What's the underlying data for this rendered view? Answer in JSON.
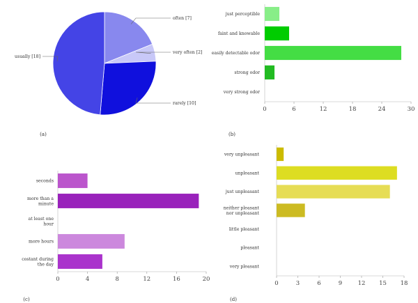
{
  "chart_data": [
    {
      "type": "pie",
      "panel_label": "(a)",
      "categories": [
        "often [7]",
        "very often [2]",
        "rarely [10]",
        "usually [18]"
      ],
      "values": [
        7,
        2,
        10,
        18
      ],
      "colors": [
        "#8888ee",
        "#c8c8f8",
        "#1010dd",
        "#4444e6"
      ]
    },
    {
      "type": "bar",
      "orientation": "horizontal",
      "panel_label": "(b)",
      "categories": [
        "just perceptible",
        "faint and knowable",
        "easily detectable odor",
        "strong odor",
        "very strong odor"
      ],
      "values": [
        3,
        5,
        28,
        2,
        0
      ],
      "xlim": [
        0,
        30
      ],
      "xticks": [
        "0",
        "6",
        "12",
        "18",
        "24",
        "30"
      ],
      "colors": [
        "#88ee88",
        "#00cc00",
        "#44dd44",
        "#22bb22",
        "#22bb22"
      ]
    },
    {
      "type": "bar",
      "orientation": "horizontal",
      "panel_label": "(c)",
      "categories": [
        "seconds",
        "more than a minute",
        "at least one hour",
        "more hours",
        "costant during the day"
      ],
      "values": [
        4,
        19,
        0,
        9,
        6
      ],
      "xlim": [
        0,
        20
      ],
      "xticks": [
        "0",
        "4",
        "8",
        "12",
        "16",
        "20"
      ],
      "colors": [
        "#bb55cc",
        "#9922bb",
        "#aa33cc",
        "#cc88dd",
        "#aa33cc"
      ]
    },
    {
      "type": "bar",
      "orientation": "horizontal",
      "panel_label": "(d)",
      "categories": [
        "very unpleasant",
        "unpleasant",
        "just unpleasant",
        "neither pleasant nor unpleasant",
        "little pleasant",
        "pleasant",
        "very pleasant"
      ],
      "values": [
        1,
        17,
        16,
        4,
        0,
        0,
        0
      ],
      "xlim": [
        0,
        18
      ],
      "xticks": [
        "0",
        "3",
        "6",
        "9",
        "12",
        "15",
        "18"
      ],
      "colors": [
        "#ccbb00",
        "#dddd22",
        "#e6dd55",
        "#ccbb22",
        "#ccbb22",
        "#ccbb22",
        "#ccbb22"
      ]
    }
  ]
}
